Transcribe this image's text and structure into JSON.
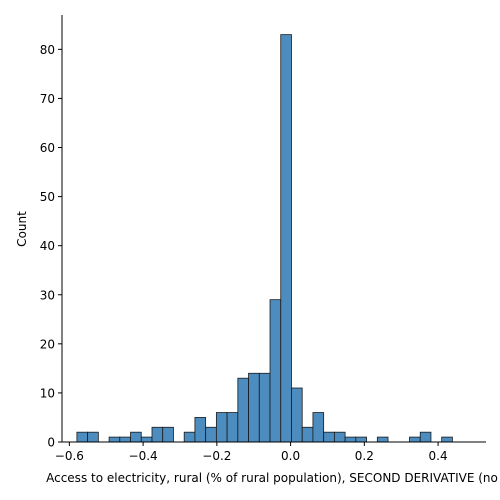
{
  "chart_data": {
    "type": "histogram",
    "xlabel": "Access to electricity, rural (% of rural population), SECOND DERIVATIVE (no",
    "ylabel": "Count",
    "xlim": [
      -0.62,
      0.53
    ],
    "ylim": [
      0,
      87
    ],
    "x_ticks": [
      -0.6,
      -0.4,
      -0.2,
      0.0,
      0.2,
      0.4
    ],
    "x_tick_labels": [
      "−0.6",
      "−0.4",
      "−0.2",
      "0.0",
      "0.2",
      "0.4"
    ],
    "y_ticks": [
      0,
      10,
      20,
      30,
      40,
      50,
      60,
      70,
      80
    ],
    "y_tick_labels": [
      "0",
      "10",
      "20",
      "30",
      "40",
      "50",
      "60",
      "70",
      "80"
    ],
    "bin_start": -0.5796,
    "bin_width": 0.0291,
    "counts": [
      2,
      2,
      0,
      1,
      1,
      2,
      1,
      3,
      3,
      0,
      2,
      5,
      3,
      6,
      6,
      13,
      14,
      14,
      29,
      83,
      11,
      3,
      6,
      2,
      2,
      1,
      1,
      0,
      1,
      0,
      0,
      1,
      2,
      0,
      1
    ],
    "bar_color": "#4c8cbf",
    "edge_color": "#1a1a1a",
    "grid": false,
    "spines": [
      "left",
      "bottom"
    ]
  }
}
